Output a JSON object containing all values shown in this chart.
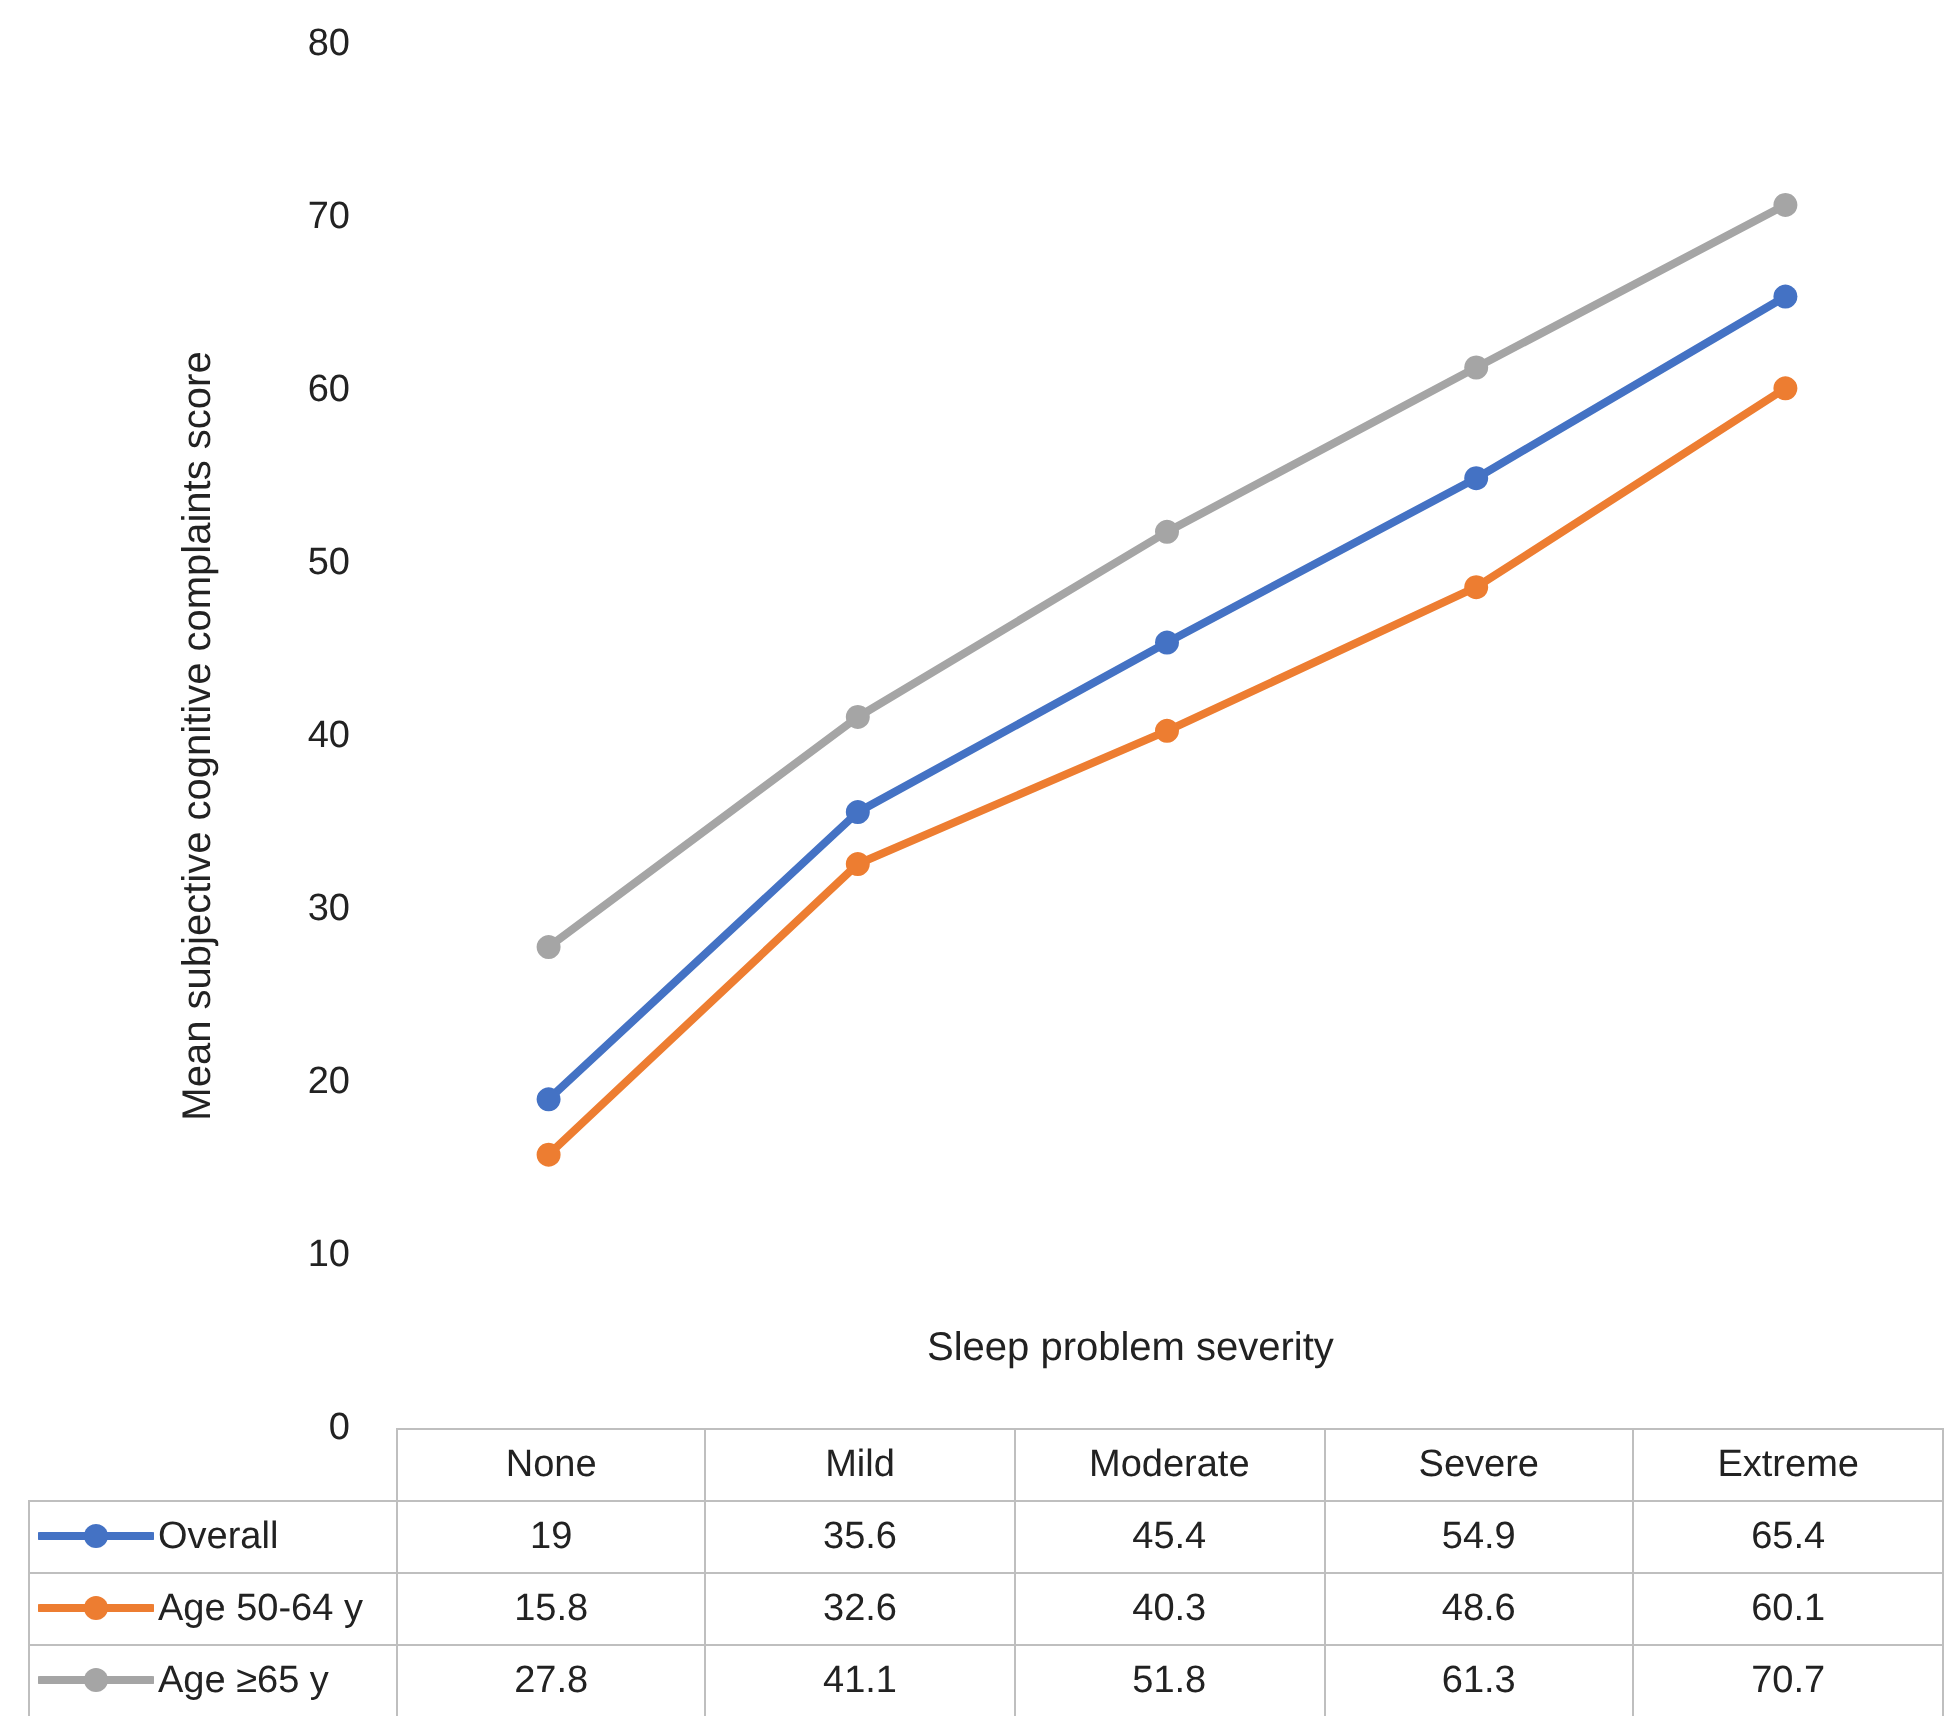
{
  "chart_data": {
    "type": "line",
    "xlabel": "Sleep problem severity",
    "ylabel": "Mean subjective cognitive complaints score",
    "categories": [
      "None",
      "Mild",
      "Moderate",
      "Severe",
      "Extreme"
    ],
    "series": [
      {
        "name": "Overall",
        "color": "#4472c4",
        "values": [
          19,
          35.6,
          45.4,
          54.9,
          65.4
        ]
      },
      {
        "name": "Age 50-64 y",
        "color": "#ed7d31",
        "values": [
          15.8,
          32.6,
          40.3,
          48.6,
          60.1
        ]
      },
      {
        "name": "Age ≥65 y",
        "color": "#a5a5a5",
        "values": [
          27.8,
          41.1,
          51.8,
          61.3,
          70.7
        ]
      }
    ],
    "ylim": [
      0,
      80
    ],
    "yticks": [
      0,
      10,
      20,
      30,
      40,
      50,
      60,
      70,
      80
    ],
    "grid": false,
    "legend": "bottom",
    "marker": "circle",
    "line_style": "solid",
    "data_labels": true
  }
}
